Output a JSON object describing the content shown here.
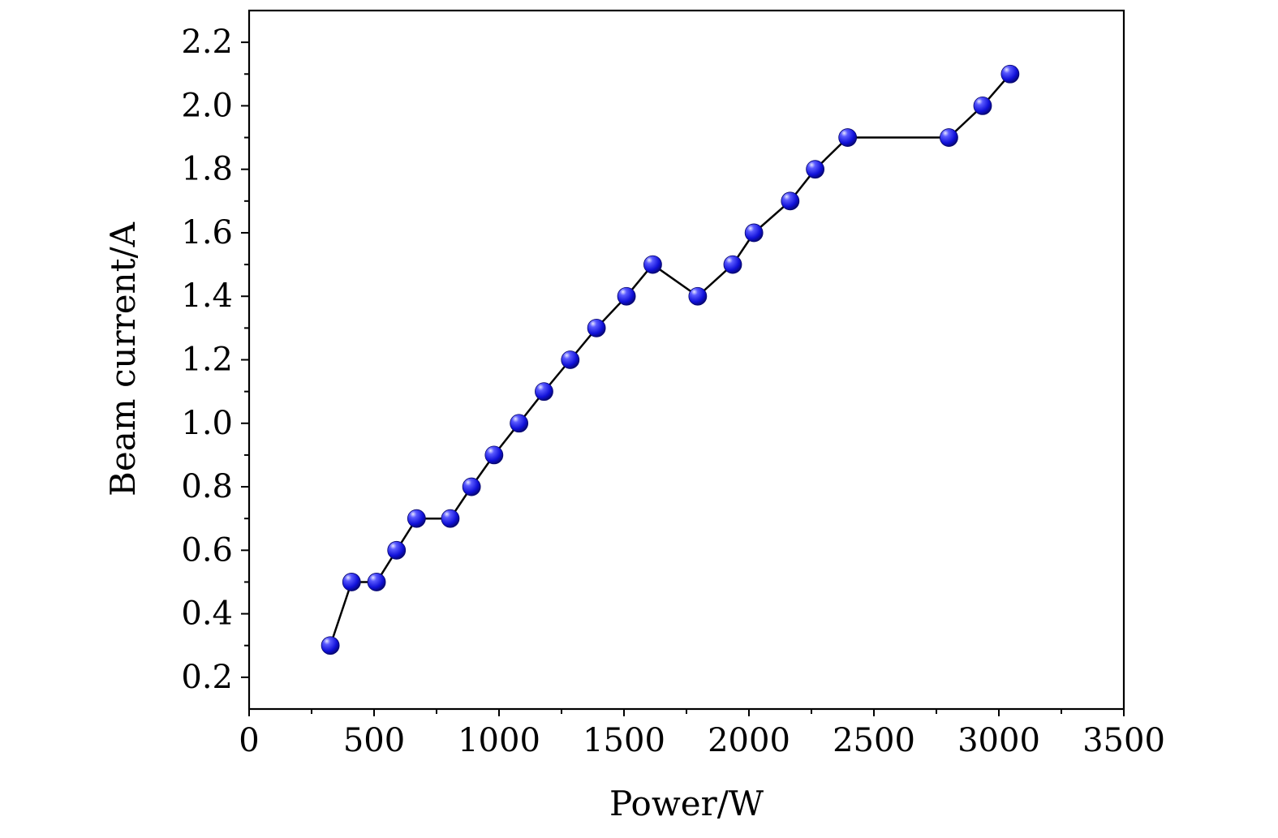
{
  "chart_data": {
    "type": "line",
    "title": "",
    "xlabel": "Power/W",
    "ylabel": "Beam current/A",
    "xlim": [
      0,
      3500
    ],
    "ylim": [
      0.1,
      2.3
    ],
    "x_ticks": [
      0,
      500,
      1000,
      1500,
      2000,
      2500,
      3000,
      3500
    ],
    "x_tick_labels": [
      "0",
      "500",
      "1000",
      "1500",
      "2000",
      "2500",
      "3000",
      "3500"
    ],
    "y_ticks": [
      0.2,
      0.4,
      0.6,
      0.8,
      1.0,
      1.2,
      1.4,
      1.6,
      1.8,
      2.0,
      2.2
    ],
    "y_tick_labels": [
      "0.2",
      "0.4",
      "0.6",
      "0.8",
      "1.0",
      "1.2",
      "1.4",
      "1.6",
      "1.8",
      "2.0",
      "2.2"
    ],
    "grid": false,
    "legend": "none",
    "series": [
      {
        "x": [
          325,
          410,
          510,
          590,
          670,
          805,
          890,
          980,
          1080,
          1180,
          1285,
          1390,
          1510,
          1615,
          1795,
          1935,
          2020,
          2165,
          2265,
          2395,
          2800,
          2935,
          3045
        ],
        "y": [
          0.3,
          0.5,
          0.5,
          0.6,
          0.7,
          0.7,
          0.8,
          0.9,
          1.0,
          1.1,
          1.2,
          1.3,
          1.4,
          1.5,
          1.4,
          1.5,
          1.6,
          1.7,
          1.8,
          1.9,
          1.9,
          2.0,
          2.1
        ],
        "line_color": "#000000",
        "marker_color": "#1414e6",
        "marker": "sphere"
      }
    ]
  }
}
